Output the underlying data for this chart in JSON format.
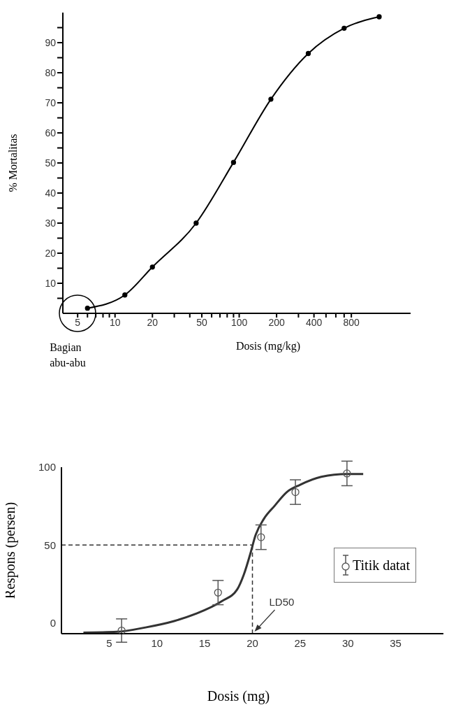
{
  "chart_data": [
    {
      "type": "line",
      "ylabel": "% Mortalitas",
      "xlabel": "Dosis (mg/kg)",
      "annotations": [
        "Bagian abu-abu"
      ],
      "log": "x",
      "marker": "circle",
      "color": "#000000",
      "x": [
        6,
        12,
        20,
        45,
        90,
        180,
        360,
        700,
        1340
      ],
      "values": [
        1.7,
        6.1,
        15.4,
        30,
        50.2,
        71.2,
        86.4,
        94.8,
        98.6
      ],
      "xlim": [
        3.8,
        2400
      ],
      "xticks": [
        5,
        {
          "value": 6,
          "label": null
        },
        {
          "value": 7,
          "label": null
        },
        {
          "value": 8,
          "label": null
        },
        {
          "value": 9,
          "label": null
        },
        10,
        20,
        {
          "value": 30,
          "label": null
        },
        {
          "value": 40,
          "label": null
        },
        50,
        {
          "value": 60,
          "label": null
        },
        {
          "value": 70,
          "label": null
        },
        {
          "value": 80,
          "label": null
        },
        {
          "value": 90,
          "label": null
        },
        100,
        200,
        {
          "value": 300,
          "label": null
        },
        400,
        {
          "value": 500,
          "label": null
        },
        {
          "value": 600,
          "label": null
        },
        {
          "value": 700,
          "label": null
        },
        800
      ],
      "ylim": [
        0,
        100
      ],
      "yticks": [
        {
          "value": 5,
          "label": null
        },
        10,
        {
          "value": 15,
          "label": null
        },
        20,
        {
          "value": 25,
          "label": null
        },
        30,
        {
          "value": 35,
          "label": null
        },
        40,
        {
          "value": 45,
          "label": null
        },
        50,
        {
          "value": 55,
          "label": null
        },
        60,
        {
          "value": 65,
          "label": null
        },
        70,
        {
          "value": 75,
          "label": null
        },
        80,
        {
          "value": 85,
          "label": null
        },
        90,
        {
          "value": 95,
          "label": null
        }
      ]
    },
    {
      "type": "line",
      "xlabel": "Dosis (mg)",
      "ylabel": "Respons (persen)",
      "legend": "right",
      "xlim": [
        0,
        40
      ],
      "xticks": [
        5,
        10,
        15,
        20,
        25,
        30,
        35
      ],
      "ylim": [
        -7,
        100
      ],
      "yticks": [
        0,
        50,
        100
      ],
      "series": [
        {
          "type": "line",
          "color": "#333333",
          "x": [
            2.3,
            5.8,
            8.8,
            11.8,
            14,
            16.8,
            18.4,
            19.1,
            19.8,
            20.3,
            21.2,
            22.3,
            23.6,
            25,
            27.2,
            29.9,
            31.6
          ],
          "values": [
            -6.3,
            -5.8,
            -3,
            1.1,
            5.6,
            13.9,
            21.4,
            31,
            44.8,
            55.8,
            66.8,
            75,
            84,
            88.7,
            93.8,
            95.6,
            95.6
          ]
        },
        {
          "type": "scatter",
          "name": "Titik datat",
          "marker": "circle",
          "color": "#555555",
          "x": [
            6.3,
            16.4,
            20.9,
            24.5,
            29.9
          ],
          "values": [
            -5,
            19.4,
            55,
            84,
            96
          ],
          "errors": [
            7.5,
            7.8,
            7.9,
            7.9,
            7.9
          ]
        }
      ],
      "ref_lines": [
        {
          "axis": "y",
          "value": 50,
          "line_style": "dashed",
          "color": "#333333"
        },
        {
          "axis": "x",
          "value": 20,
          "label": "LD50",
          "line_style": "dashed",
          "color": "#333333"
        }
      ]
    }
  ]
}
